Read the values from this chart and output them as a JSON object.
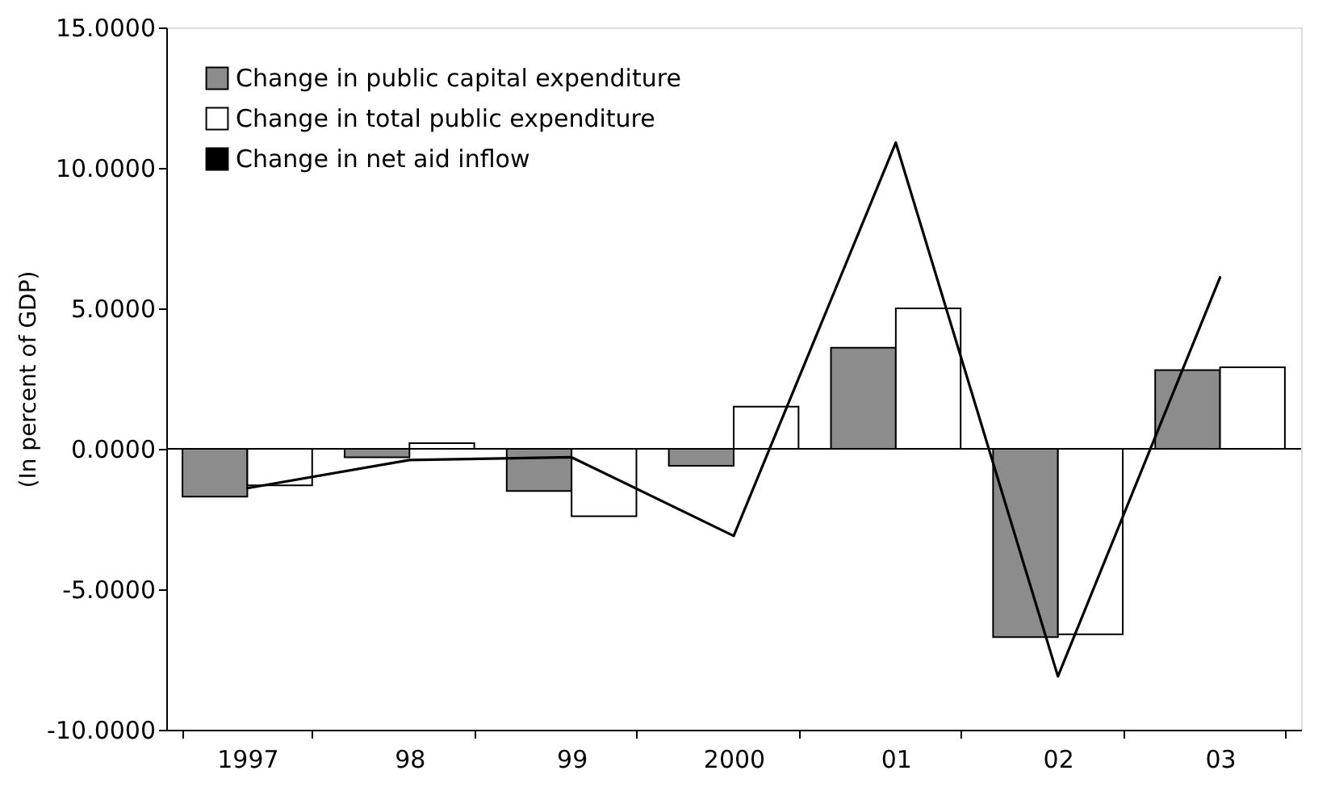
{
  "chart_data": {
    "type": "bar",
    "ylabel": "(In percent of GDP)",
    "categories": [
      "1997",
      "98",
      "99",
      "2000",
      "01",
      "02",
      "03"
    ],
    "series": [
      {
        "name": "Change in public capital expenditure",
        "color": "#8c8c8c",
        "values": [
          -1.7,
          -0.3,
          -1.5,
          -0.6,
          3.6,
          -6.7,
          2.8
        ]
      },
      {
        "name": "Change in total public expenditure",
        "color": "#ffffff",
        "values": [
          -1.3,
          0.2,
          -2.4,
          1.5,
          5.0,
          -6.6,
          2.9
        ]
      },
      {
        "name": "Change in net aid inflow",
        "type": "line",
        "color": "#000000",
        "values": [
          -1.4,
          -0.4,
          -0.3,
          -3.1,
          10.9,
          -8.1,
          6.1
        ]
      }
    ],
    "ylim": [
      -10,
      15
    ],
    "yticks": [
      {
        "value": -10,
        "label": "-10.0000"
      },
      {
        "value": -5,
        "label": "-5.0000"
      },
      {
        "value": 0,
        "label": "0.0000"
      },
      {
        "value": 5,
        "label": "5.0000"
      },
      {
        "value": 10,
        "label": "10.0000"
      },
      {
        "value": 15,
        "label": "15.0000"
      }
    ],
    "ref_lines": [
      {
        "axis": "y",
        "value": 0,
        "color": "#000000"
      }
    ],
    "grid": false,
    "legend": "top left",
    "line_style": "solid",
    "marker": "none"
  }
}
